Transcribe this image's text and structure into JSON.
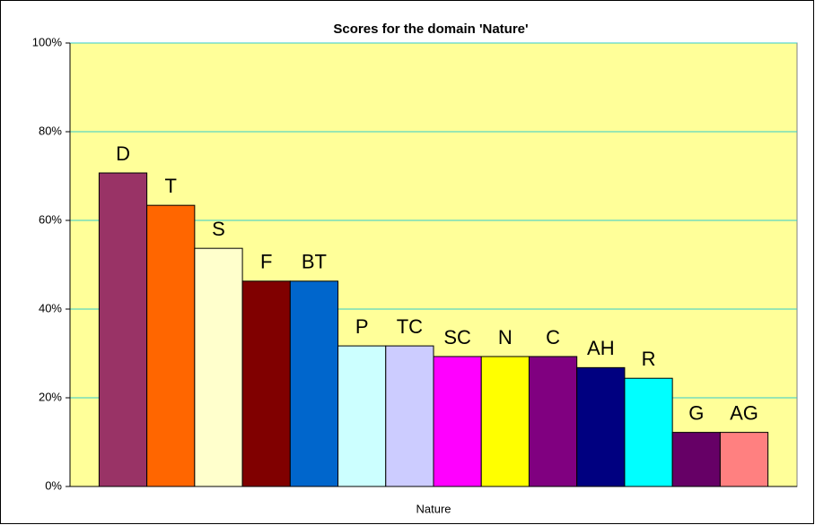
{
  "chart_data": {
    "type": "bar",
    "title": "Scores for the domain 'Nature'",
    "categories": [
      "Nature"
    ],
    "series": [
      {
        "name": "D",
        "color": "#993366",
        "values": [
          70.7
        ]
      },
      {
        "name": "T",
        "color": "#ff6600",
        "values": [
          63.4
        ]
      },
      {
        "name": "S",
        "color": "#ffffcc",
        "values": [
          53.7
        ]
      },
      {
        "name": "F",
        "color": "#800000",
        "values": [
          46.3
        ]
      },
      {
        "name": "BT",
        "color": "#0066cc",
        "values": [
          46.3
        ]
      },
      {
        "name": "P",
        "color": "#ccffff",
        "values": [
          31.7
        ]
      },
      {
        "name": "TC",
        "color": "#ccccff",
        "values": [
          31.7
        ]
      },
      {
        "name": "SC",
        "color": "#ff00ff",
        "values": [
          29.3
        ]
      },
      {
        "name": "N",
        "color": "#ffff00",
        "values": [
          29.3
        ]
      },
      {
        "name": "C",
        "color": "#800080",
        "values": [
          29.3
        ]
      },
      {
        "name": "AH",
        "color": "#000080",
        "values": [
          26.8
        ]
      },
      {
        "name": "R",
        "color": "#00ffff",
        "values": [
          24.4
        ]
      },
      {
        "name": "G",
        "color": "#660066",
        "values": [
          12.2
        ]
      },
      {
        "name": "AG",
        "color": "#ff8080",
        "values": [
          12.2
        ]
      }
    ],
    "ylim": [
      0,
      100
    ],
    "yticks": [
      {
        "value": 0,
        "label": "0%"
      },
      {
        "value": 20,
        "label": "20%"
      },
      {
        "value": 40,
        "label": "40%"
      },
      {
        "value": 60,
        "label": "60%"
      },
      {
        "value": 80,
        "label": "80%"
      },
      {
        "value": 100,
        "label": "100%"
      }
    ],
    "grid": true,
    "plot_background": "#ffff99",
    "grid_color": "#33cccc"
  }
}
